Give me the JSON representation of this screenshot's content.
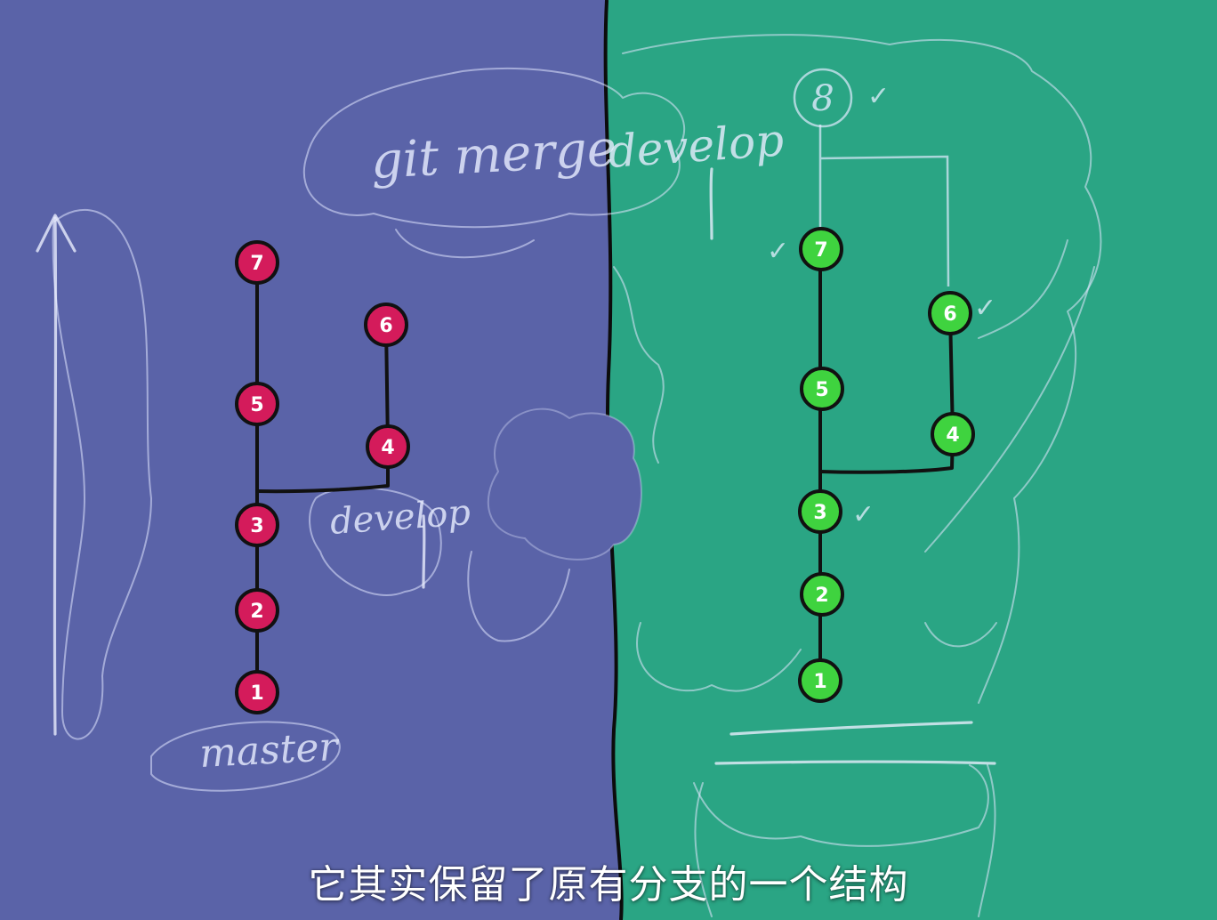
{
  "command": {
    "part1": "git merge",
    "part2": "develop"
  },
  "left_branch_label": "develop",
  "master_label": "master",
  "left_nodes": [
    "1",
    "2",
    "3",
    "4",
    "5",
    "6",
    "7"
  ],
  "right_nodes": [
    "1",
    "2",
    "3",
    "4",
    "5",
    "6",
    "7",
    "8"
  ],
  "checkmark": "✓",
  "subtitle": "它其实保留了原有分支的一个结构",
  "colors": {
    "left_bg": "#5a63a8",
    "right_bg": "#2aa584",
    "left_node": "#d41b5b",
    "right_node": "#3fd33f"
  }
}
